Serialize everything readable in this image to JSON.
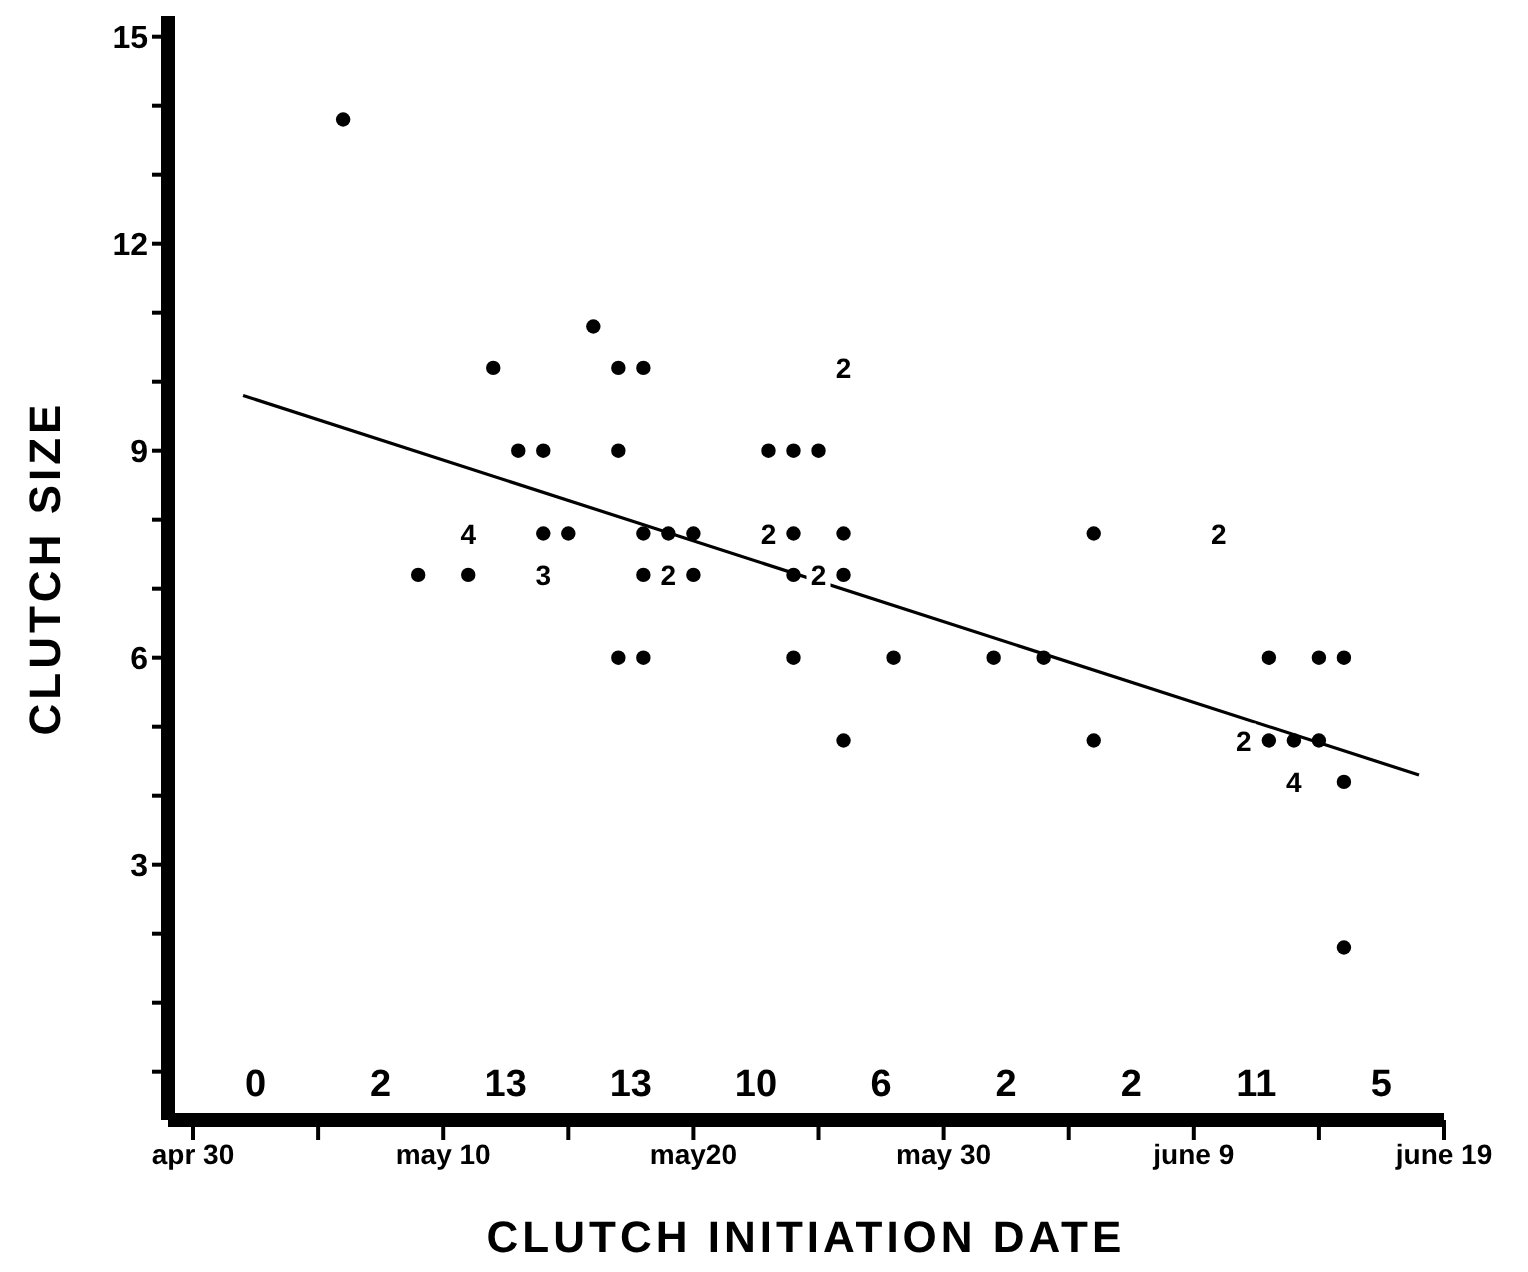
{
  "chart_data": {
    "type": "scatter",
    "xlabel": "CLUTCH INITIATION DATE",
    "ylabel": "CLUTCH SIZE",
    "xlim": [
      "--04-29",
      "--06-19"
    ],
    "ylim": [
      -0.7,
      15.3
    ],
    "xticks": [
      {
        "value": "--04-30",
        "label": "apr 30"
      },
      {
        "value": "--05-05",
        "label": null
      },
      {
        "value": "--05-10",
        "label": "may 10"
      },
      {
        "value": "--05-15",
        "label": null
      },
      {
        "value": "--05-20",
        "label": "may20"
      },
      {
        "value": "--05-25",
        "label": null
      },
      {
        "value": "--05-30",
        "label": "may 30"
      },
      {
        "value": "--06-04",
        "label": null
      },
      {
        "value": "--06-09",
        "label": "june 9"
      },
      {
        "value": "--06-14",
        "label": null
      },
      {
        "value": "--06-19",
        "label": "june 19"
      }
    ],
    "yticks": [
      {
        "value": 0,
        "label": null
      },
      {
        "value": 1,
        "label": null
      },
      {
        "value": 2,
        "label": null
      },
      3,
      {
        "value": 4,
        "label": null
      },
      {
        "value": 5,
        "label": null
      },
      6,
      {
        "value": 7,
        "label": null
      },
      {
        "value": 8,
        "label": null
      },
      9,
      {
        "value": 10,
        "label": null
      },
      {
        "value": 11,
        "label": null
      },
      12,
      {
        "value": 13,
        "label": null
      },
      {
        "value": 14,
        "label": null
      },
      15
    ],
    "marker": "circle",
    "series": [
      {
        "color": "#000000",
        "x": [
          "--05-06",
          "--05-16",
          "--05-12",
          "--05-17",
          "--05-18",
          "--05-13",
          "--05-14",
          "--05-17",
          "--05-23",
          "--05-24",
          "--05-25",
          "--05-14",
          "--05-15",
          "--05-18",
          "--05-19",
          "--05-20",
          "--05-24",
          "--05-26",
          "--06-05",
          "--05-09",
          "--05-11",
          "--05-18",
          "--05-20",
          "--05-24",
          "--05-26",
          "--05-17",
          "--05-18",
          "--05-24",
          "--05-28",
          "--06-01",
          "--06-03",
          "--06-12",
          "--06-14",
          "--06-15",
          "--05-26",
          "--06-05",
          "--06-12",
          "--06-13",
          "--06-14",
          "--06-15",
          "--06-15"
        ],
        "values": [
          13.8,
          10.8,
          10.2,
          10.2,
          10.2,
          9.0,
          9.0,
          9.0,
          9.0,
          9.0,
          9.0,
          7.8,
          7.8,
          7.8,
          7.8,
          7.8,
          7.8,
          7.8,
          7.8,
          7.2,
          7.2,
          7.2,
          7.2,
          7.2,
          7.2,
          6.0,
          6.0,
          6.0,
          6.0,
          6.0,
          6.0,
          6.0,
          6.0,
          6.0,
          4.8,
          4.8,
          4.8,
          4.8,
          4.8,
          4.2,
          1.8
        ]
      },
      {
        "type": "line",
        "marker": "none",
        "color": "#000000",
        "x": [
          "--05-02",
          "--06-18"
        ],
        "values": [
          9.8,
          4.3
        ]
      }
    ],
    "annotations": [
      "0",
      "2",
      "13",
      "13",
      "10",
      "6",
      "2",
      "2",
      "11",
      "5",
      {
        "text": "4",
        "x": "--05-11",
        "y": 7.8
      },
      {
        "text": "3",
        "x": "--05-14",
        "y": 7.2
      },
      {
        "text": "2",
        "x": "--05-19",
        "y": 7.2
      },
      {
        "text": "2",
        "x": "--05-23",
        "y": 7.8
      },
      {
        "text": "2",
        "x": "--05-25",
        "y": 7.2
      },
      {
        "text": "2",
        "x": "--05-26",
        "y": 10.2
      },
      {
        "text": "2",
        "x": "--06-10",
        "y": 7.8
      },
      {
        "text": "2",
        "x": "--06-11",
        "y": 4.8
      },
      {
        "text": "4",
        "x": "--06-13",
        "y": 4.2
      }
    ]
  }
}
